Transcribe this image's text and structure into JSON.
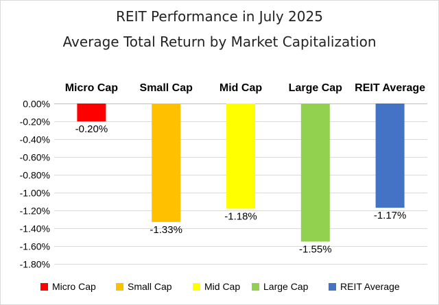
{
  "chart_data": {
    "type": "bar",
    "title": [
      "REIT Performance  in July 2025",
      "Average Total Return by Market Capitalization"
    ],
    "categories": [
      "Micro Cap",
      "Small Cap",
      "Mid Cap",
      "Large Cap",
      "REIT Average"
    ],
    "values": [
      -0.2,
      -1.33,
      -1.18,
      -1.55,
      -1.17
    ],
    "value_labels": [
      "-0.20%",
      "-1.33%",
      "-1.18%",
      "-1.55%",
      "-1.17%"
    ],
    "colors": [
      "#ff0000",
      "#ffc000",
      "#ffff00",
      "#92d050",
      "#4472c4"
    ],
    "ylim": [
      -1.8,
      0
    ],
    "yticks": [
      0,
      -0.2,
      -0.4,
      -0.6,
      -0.8,
      -1.0,
      -1.2,
      -1.4,
      -1.6,
      -1.8
    ],
    "ytick_labels": [
      "0.00%",
      "-0.20%",
      "-0.40%",
      "-0.60%",
      "-0.80%",
      "-1.00%",
      "-1.20%",
      "-1.40%",
      "-1.60%",
      "-1.80%"
    ],
    "grid": true,
    "legend": {
      "position": "bottom",
      "entries": [
        "Micro Cap",
        "Small Cap",
        "Mid Cap",
        "Large Cap",
        "REIT Average"
      ]
    },
    "xlabel": "",
    "ylabel": ""
  }
}
